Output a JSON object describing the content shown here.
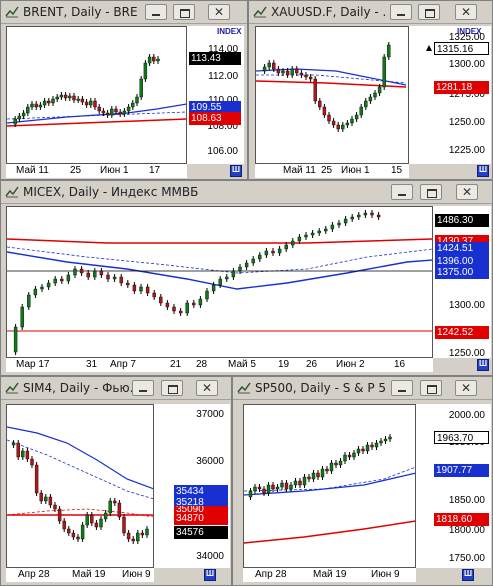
{
  "colors": {
    "bull": "#0f7a17",
    "bear": "#b01717",
    "ma_red": "#e00000",
    "ma_blue": "#1830d0",
    "ma_dash": "#1830d0"
  },
  "windows": {
    "brent": {
      "title": "BRENT, Daily - BRE...",
      "index_label": "INDEX",
      "y_ticks": [
        "114.00",
        "112.00",
        "110.00",
        "108.00",
        "106.00"
      ],
      "x_labels": [
        "Май 11",
        "25",
        "Июн 1",
        "17"
      ],
      "badges": [
        {
          "text": "113.43",
          "bg": "#000000",
          "fg": "#ffffff"
        },
        {
          "text": "109.55",
          "bg": "#1830d0",
          "fg": "#ffffff"
        },
        {
          "text": "108.63",
          "bg": "#e00000",
          "fg": "#ffffff"
        }
      ]
    },
    "xau": {
      "title": "XAUUSD.F, Daily - ...",
      "index_label": "INDEX",
      "y_ticks": [
        "1325.00",
        "1300.00",
        "1275.00",
        "1250.00",
        "1225.00"
      ],
      "x_labels": [
        "Май 11",
        "25",
        "Июн 1",
        "15"
      ],
      "badges": [
        {
          "text": "1315.16",
          "bg": "#ffffff",
          "fg": "#000000"
        },
        {
          "text": "1281.18",
          "bg": "#e00000",
          "fg": "#ffffff"
        }
      ]
    },
    "micex": {
      "title": "MICEX, Daily - Индекс ММВБ",
      "y_ticks": [
        "1300.00",
        "1250.00"
      ],
      "x_labels": [
        "Мар 17",
        "31",
        "Апр 7",
        "21",
        "28",
        "Май 5",
        "19",
        "26",
        "Июн 2",
        "16"
      ],
      "badges": [
        {
          "text": "1486.30",
          "bg": "#000000",
          "fg": "#ffffff"
        },
        {
          "text": "1430.37",
          "bg": "#e00000",
          "fg": "#ffffff"
        },
        {
          "text": "1424.51",
          "bg": "#1830d0",
          "fg": "#ffffff"
        },
        {
          "text": "1396.00",
          "bg": "#1830d0",
          "fg": "#ffffff"
        },
        {
          "text": "1375.00",
          "bg": "#1830d0",
          "fg": "#ffffff"
        },
        {
          "text": "1242.52",
          "bg": "#e00000",
          "fg": "#ffffff"
        }
      ]
    },
    "sim4": {
      "title": "SIM4, Daily - Фью...",
      "y_ticks": [
        "37000",
        "36000",
        "34000"
      ],
      "x_labels": [
        "Апр 28",
        "Май 19",
        "Июн 9"
      ],
      "badges": [
        {
          "text": "35434",
          "bg": "#1830d0",
          "fg": "#ffffff"
        },
        {
          "text": "35218",
          "bg": "#1830d0",
          "fg": "#ffffff"
        },
        {
          "text": "35090",
          "bg": "#e00000",
          "fg": "#ffffff"
        },
        {
          "text": "34870",
          "bg": "#e00000",
          "fg": "#ffffff"
        },
        {
          "text": "34576",
          "bg": "#000000",
          "fg": "#ffffff"
        }
      ]
    },
    "sp500": {
      "title": "SP500, Daily - S & P 5...",
      "y_ticks": [
        "2000.00",
        "1950.00",
        "1850.00",
        "1800.00",
        "1750.00"
      ],
      "x_labels": [
        "Апр 28",
        "Май 19",
        "Июн 9"
      ],
      "badges": [
        {
          "text": "1963.70",
          "bg": "#ffffff",
          "fg": "#000000"
        },
        {
          "text": "1907.77",
          "bg": "#1830d0",
          "fg": "#ffffff"
        },
        {
          "text": "1818.60",
          "bg": "#e00000",
          "fg": "#ffffff"
        }
      ]
    }
  },
  "corner_glyph": "Ш"
}
